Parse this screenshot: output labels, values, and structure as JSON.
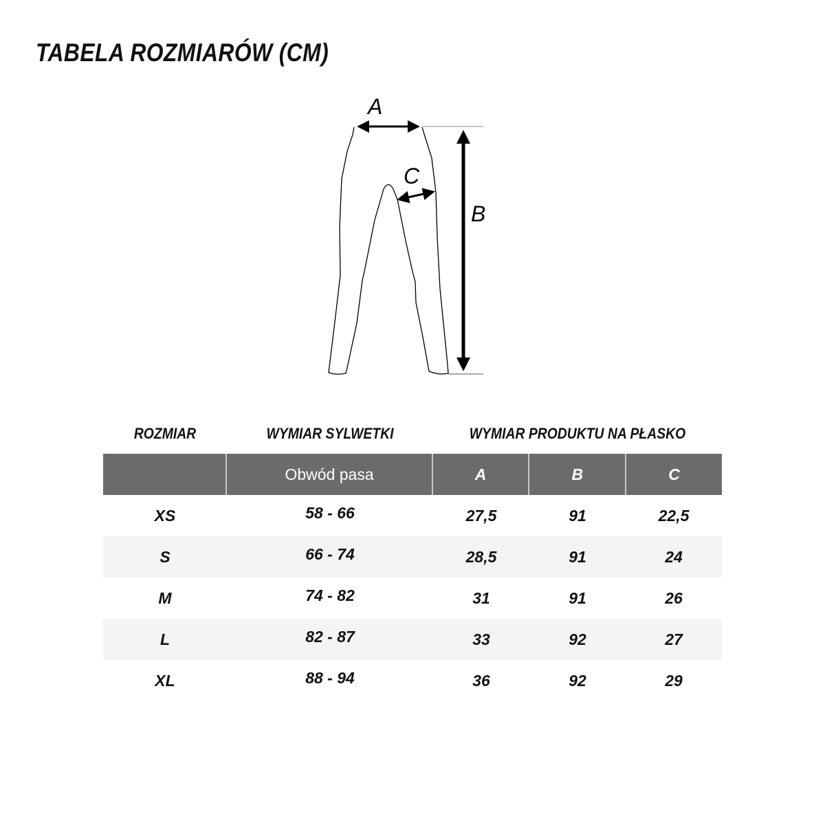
{
  "title": "TABELA ROZMIARÓW (CM)",
  "diagram": {
    "labels": {
      "a": "A",
      "b": "B",
      "c": "C"
    }
  },
  "table": {
    "group_headers": {
      "size": "ROZMIAR",
      "body": "WYMIAR SYLWETKI",
      "product": "WYMIAR PRODUKTU NA PŁASKO"
    },
    "columns": [
      "",
      "Obwód pasa",
      "A",
      "B",
      "C"
    ],
    "rows": [
      [
        "XS",
        "58 - 66",
        "27,5",
        "91",
        "22,5"
      ],
      [
        "S",
        "66 - 74",
        "28,5",
        "91",
        "24"
      ],
      [
        "M",
        "74 - 82",
        "31",
        "91",
        "26"
      ],
      [
        "L",
        "82 - 87",
        "33",
        "92",
        "27"
      ],
      [
        "XL",
        "88 - 94",
        "36",
        "92",
        "29"
      ]
    ]
  },
  "colors": {
    "header_bg": "#6b6b6b",
    "stripe_bg": "#f4f4f4"
  }
}
